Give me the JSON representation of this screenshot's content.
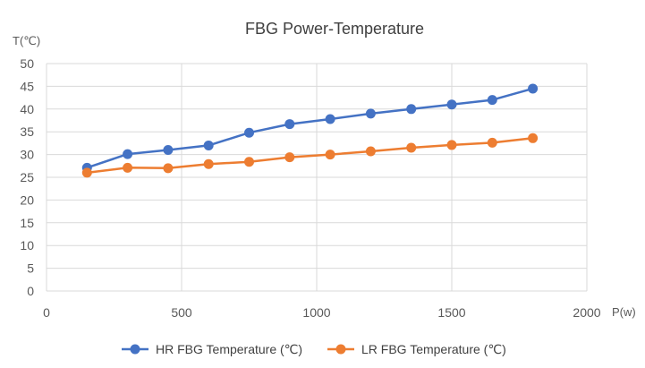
{
  "chart_data": {
    "type": "line",
    "title": "FBG Power-Temperature",
    "xlabel": "P(w)",
    "ylabel": "T(℃)",
    "xlim": [
      0,
      2000
    ],
    "ylim": [
      0,
      50
    ],
    "xticks": [
      0,
      500,
      1000,
      1500,
      2000
    ],
    "yticks": [
      0,
      5,
      10,
      15,
      20,
      25,
      30,
      35,
      40,
      45,
      50
    ],
    "grid": true,
    "legend": "bottom",
    "x": [
      150,
      300,
      450,
      600,
      750,
      900,
      1050,
      1200,
      1350,
      1500,
      1650,
      1800
    ],
    "series": [
      {
        "name": "HR FBG Temperature (℃)",
        "color": "#4472c4",
        "values": [
          27.1,
          30.1,
          31.0,
          32.0,
          34.8,
          36.7,
          37.8,
          39.0,
          40.0,
          41.0,
          42.0,
          44.5
        ]
      },
      {
        "name": "LR FBG Temperature (℃)",
        "color": "#ed7d31",
        "values": [
          26.0,
          27.1,
          27.0,
          27.9,
          28.4,
          29.4,
          30.0,
          30.7,
          31.5,
          32.1,
          32.6,
          33.6
        ]
      }
    ]
  }
}
